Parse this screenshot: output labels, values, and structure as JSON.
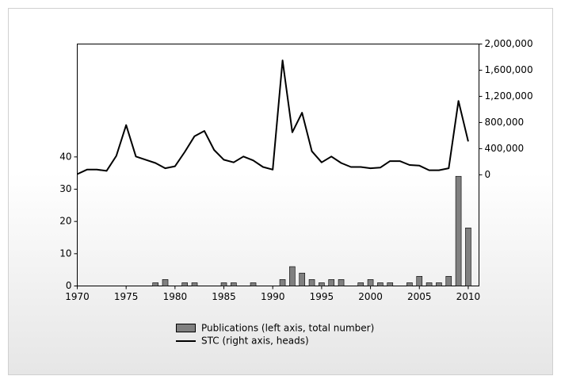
{
  "chart_data": {
    "type": "bar-line",
    "x": [
      1970,
      1971,
      1972,
      1973,
      1974,
      1975,
      1976,
      1977,
      1978,
      1979,
      1980,
      1981,
      1982,
      1983,
      1984,
      1985,
      1986,
      1987,
      1988,
      1989,
      1990,
      1991,
      1992,
      1993,
      1994,
      1995,
      1996,
      1997,
      1998,
      1999,
      2000,
      2001,
      2002,
      2003,
      2004,
      2005,
      2006,
      2007,
      2008,
      2009,
      2010
    ],
    "series": [
      {
        "name": "Publications (left axis, total number)",
        "type": "bar",
        "axis": "y",
        "color": "#808080",
        "values": [
          0,
          0,
          0,
          0,
          0,
          0,
          0,
          0,
          1,
          2,
          0,
          1,
          1,
          0,
          0,
          1,
          1,
          0,
          1,
          0,
          0,
          2,
          6,
          4,
          2,
          1,
          2,
          2,
          0,
          1,
          2,
          1,
          1,
          0,
          1,
          3,
          1,
          1,
          3,
          34,
          18
        ]
      },
      {
        "name": "STC (right axis, heads)",
        "type": "line",
        "axis": "y2",
        "color": "#000000",
        "values": [
          10000,
          80000,
          80000,
          60000,
          290000,
          760000,
          280000,
          230000,
          180000,
          100000,
          130000,
          350000,
          590000,
          670000,
          380000,
          230000,
          190000,
          280000,
          220000,
          120000,
          80000,
          1750000,
          650000,
          950000,
          360000,
          190000,
          280000,
          180000,
          120000,
          120000,
          100000,
          110000,
          210000,
          210000,
          150000,
          140000,
          70000,
          70000,
          100000,
          1130000,
          510000
        ]
      }
    ],
    "xlim": [
      1970,
      2011.1
    ],
    "xticks": [
      1970,
      1975,
      1980,
      1985,
      1990,
      1995,
      2000,
      2005,
      2010
    ],
    "ylim": [
      0,
      75
    ],
    "yticks": [
      0,
      10,
      20,
      30,
      40
    ],
    "y2lim": [
      -1700000,
      2000000
    ],
    "y2ticks": [
      0,
      {
        "value": 400000,
        "label": "400,000"
      },
      {
        "value": 800000,
        "label": "800,000"
      },
      {
        "value": 1200000,
        "label": "1,200,000"
      },
      {
        "value": 1600000,
        "label": "1,600,000"
      },
      {
        "value": 2000000,
        "label": "2,000,000"
      }
    ]
  }
}
